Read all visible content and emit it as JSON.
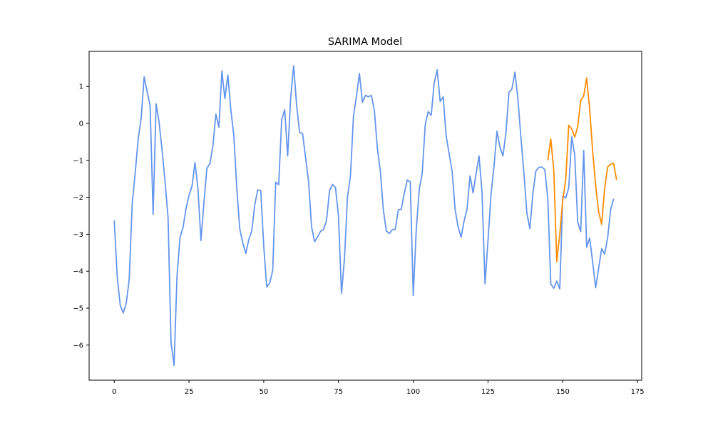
{
  "chart_data": {
    "type": "line",
    "title": "SARIMA Model",
    "xlabel": "",
    "ylabel": "",
    "xlim": [
      -8.4,
      176.4
    ],
    "ylim": [
      -6.95,
      1.95
    ],
    "xticks": [
      0,
      25,
      50,
      75,
      100,
      125,
      150,
      175
    ],
    "yticks": [
      -6,
      -5,
      -4,
      -3,
      -2,
      -1,
      0,
      1
    ],
    "ytick_labels": [
      "−6",
      "−5",
      "−4",
      "−3",
      "−2",
      "−1",
      "0",
      "1"
    ],
    "grid": false,
    "legend": false,
    "series": [
      {
        "color": "#6495ED",
        "x_start": 0,
        "values": [
          -2.63,
          -4.15,
          -4.92,
          -5.13,
          -4.87,
          -4.23,
          -2.18,
          -1.35,
          -0.43,
          0.14,
          1.26,
          0.86,
          0.48,
          -2.46,
          0.53,
          0.03,
          -0.73,
          -1.58,
          -2.55,
          -5.93,
          -6.55,
          -4.12,
          -3.08,
          -2.82,
          -2.31,
          -1.95,
          -1.7,
          -1.06,
          -1.77,
          -3.17,
          -2.14,
          -1.21,
          -1.09,
          -0.6,
          0.25,
          -0.1,
          1.42,
          0.67,
          1.31,
          0.36,
          -0.33,
          -1.78,
          -2.86,
          -3.24,
          -3.52,
          -3.14,
          -2.91,
          -2.2,
          -1.8,
          -1.82,
          -3.32,
          -4.43,
          -4.32,
          -3.98,
          -1.59,
          -1.66,
          0.1,
          0.37,
          -0.88,
          0.69,
          1.56,
          0.49,
          -0.24,
          -0.28,
          -0.93,
          -1.58,
          -2.8,
          -3.2,
          -3.07,
          -2.92,
          -2.87,
          -2.62,
          -1.82,
          -1.65,
          -1.74,
          -2.52,
          -4.6,
          -3.66,
          -1.99,
          -1.42,
          0.19,
          0.74,
          1.35,
          0.57,
          0.76,
          0.72,
          0.76,
          0.35,
          -0.67,
          -1.3,
          -2.34,
          -2.91,
          -2.98,
          -2.88,
          -2.86,
          -2.34,
          -2.32,
          -1.89,
          -1.53,
          -1.58,
          -4.66,
          -2.89,
          -1.79,
          -1.35,
          -0.04,
          0.32,
          0.22,
          1.09,
          1.45,
          0.59,
          0.72,
          -0.33,
          -0.82,
          -1.3,
          -2.33,
          -2.8,
          -3.08,
          -2.64,
          -2.31,
          -1.42,
          -1.88,
          -1.37,
          -0.88,
          -1.86,
          -4.34,
          -3.17,
          -1.92,
          -1.17,
          -0.21,
          -0.64,
          -0.88,
          -0.25,
          0.84,
          0.93,
          1.39,
          0.66,
          -0.37,
          -1.34,
          -2.43,
          -2.85,
          -1.91,
          -1.29,
          -1.19,
          -1.18,
          -1.25,
          -2.03,
          -4.35,
          -4.46,
          -4.27,
          -4.48,
          -1.96,
          -2.02,
          -1.74,
          -0.36,
          -0.85,
          -2.67,
          -2.93,
          -0.73,
          -3.35,
          -3.1,
          -3.75,
          -4.45,
          -3.92,
          -3.39,
          -3.54,
          -3.1,
          -2.34,
          -2.04
        ]
      },
      {
        "color": "#FF8C00",
        "x_start": 145,
        "values": [
          -1.0,
          -0.42,
          -1.27,
          -3.74,
          -3.0,
          -2.07,
          -1.51,
          -0.05,
          -0.15,
          -0.37,
          -0.09,
          0.62,
          0.74,
          1.23,
          0.39,
          -0.76,
          -1.68,
          -2.39,
          -2.73,
          -1.76,
          -1.18,
          -1.1,
          -1.08,
          -1.53
        ]
      }
    ]
  }
}
